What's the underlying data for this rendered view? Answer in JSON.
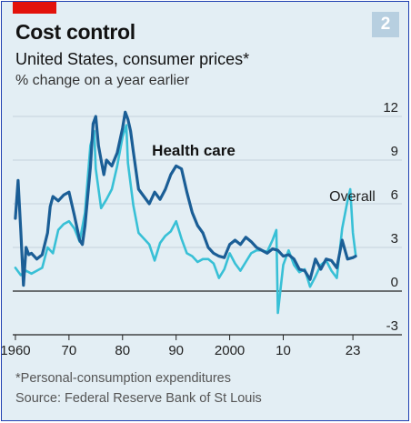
{
  "badge": "2",
  "chart_data": {
    "type": "line",
    "title": "Cost control",
    "subtitle": "United States, consumer prices*",
    "ylabel": "% change on a year earlier",
    "footnote": "*Personal-consumption expenditures",
    "source": "Source: Federal Reserve Bank of St Louis",
    "xlim": [
      1959.5,
      2024.0
    ],
    "ylim": [
      -3,
      13
    ],
    "y_ticks": [
      12,
      9,
      6,
      3,
      0,
      -3
    ],
    "y_tick_labels": [
      "12",
      "9",
      "6",
      "3",
      "0",
      "-3"
    ],
    "x_ticks": [
      1960,
      1970,
      1980,
      1990,
      2000,
      2010,
      2023
    ],
    "x_tick_labels": [
      "1960",
      "70",
      "80",
      "90",
      "2000",
      "10",
      "23"
    ],
    "grid": true,
    "series": [
      {
        "name": "Health care",
        "color": "#1b5e96",
        "x": [
          1960,
          1960.5,
          1961,
          1961.5,
          1962,
          1962.5,
          1963,
          1964,
          1965,
          1966,
          1966.5,
          1967,
          1968,
          1969,
          1970,
          1971,
          1972,
          1972.5,
          1973,
          1974,
          1974.5,
          1975,
          1975.5,
          1976,
          1976.5,
          1977,
          1978,
          1979,
          1980,
          1980.5,
          1981,
          1981.5,
          1982,
          1983,
          1984,
          1985,
          1986,
          1987,
          1988,
          1989,
          1990,
          1991,
          1992,
          1993,
          1994,
          1995,
          1996,
          1997,
          1998,
          1999,
          2000,
          2001,
          2002,
          2003,
          2004,
          2005,
          2006,
          2007,
          2008,
          2009,
          2010,
          2011,
          2012,
          2013,
          2014,
          2015,
          2016,
          2017,
          2018,
          2019,
          2020,
          2021,
          2022,
          2023,
          2023.5
        ],
        "values": [
          5.0,
          7.6,
          4.2,
          0.4,
          3.0,
          2.5,
          2.6,
          2.2,
          2.5,
          4.0,
          5.8,
          6.5,
          6.2,
          6.6,
          6.8,
          5.2,
          3.5,
          3.2,
          4.5,
          8.5,
          11.5,
          12.0,
          10.0,
          9.0,
          8.0,
          9.0,
          8.6,
          9.5,
          11.2,
          12.3,
          11.8,
          11.0,
          9.6,
          7.0,
          6.5,
          6.0,
          6.8,
          6.3,
          7.0,
          8.0,
          8.6,
          8.4,
          6.8,
          5.4,
          4.5,
          4.0,
          3.0,
          2.6,
          2.4,
          2.3,
          3.2,
          3.5,
          3.2,
          3.7,
          3.4,
          3.0,
          2.8,
          2.6,
          2.9,
          2.8,
          2.4,
          2.5,
          2.2,
          1.5,
          1.4,
          0.8,
          2.2,
          1.5,
          2.2,
          2.1,
          1.6,
          3.5,
          2.2,
          2.3,
          2.4
        ]
      },
      {
        "name": "Overall",
        "color": "#38c0d6",
        "x": [
          1960,
          1961,
          1962,
          1963,
          1964,
          1965,
          1966,
          1967,
          1968,
          1969,
          1970,
          1971,
          1972,
          1973,
          1974,
          1974.7,
          1975,
          1976,
          1977,
          1978,
          1979,
          1980,
          1980.7,
          1981,
          1982,
          1983,
          1984,
          1985,
          1986,
          1987,
          1988,
          1989,
          1990,
          1991,
          1992,
          1993,
          1994,
          1995,
          1996,
          1997,
          1998,
          1999,
          2000,
          2001,
          2002,
          2003,
          2004,
          2005,
          2006,
          2007,
          2008,
          2008.7,
          2009,
          2010,
          2011,
          2012,
          2013,
          2014,
          2015,
          2016,
          2017,
          2018,
          2019,
          2020,
          2021,
          2022,
          2022.5,
          2023,
          2023.5
        ],
        "values": [
          1.6,
          1.1,
          1.4,
          1.2,
          1.4,
          1.6,
          3.0,
          2.6,
          4.2,
          4.6,
          4.8,
          4.3,
          3.4,
          5.4,
          10.0,
          11.0,
          8.4,
          5.7,
          6.3,
          7.0,
          8.6,
          10.6,
          11.4,
          8.8,
          5.9,
          4.0,
          3.6,
          3.2,
          2.1,
          3.3,
          3.8,
          4.1,
          4.8,
          3.6,
          2.6,
          2.4,
          2.0,
          2.2,
          2.2,
          1.9,
          0.9,
          1.5,
          2.6,
          1.9,
          1.4,
          2.0,
          2.6,
          2.8,
          2.8,
          2.7,
          3.5,
          4.2,
          -1.5,
          1.8,
          2.8,
          1.8,
          1.3,
          1.5,
          0.3,
          1.0,
          1.8,
          2.1,
          1.4,
          0.9,
          4.3,
          6.2,
          7.0,
          4.0,
          2.5
        ]
      }
    ],
    "annotations": [
      {
        "text": "Health care",
        "x": 1985.5,
        "y": 9.3
      },
      {
        "text": "Overall",
        "x": 2018.6,
        "y": 6.2
      }
    ]
  }
}
